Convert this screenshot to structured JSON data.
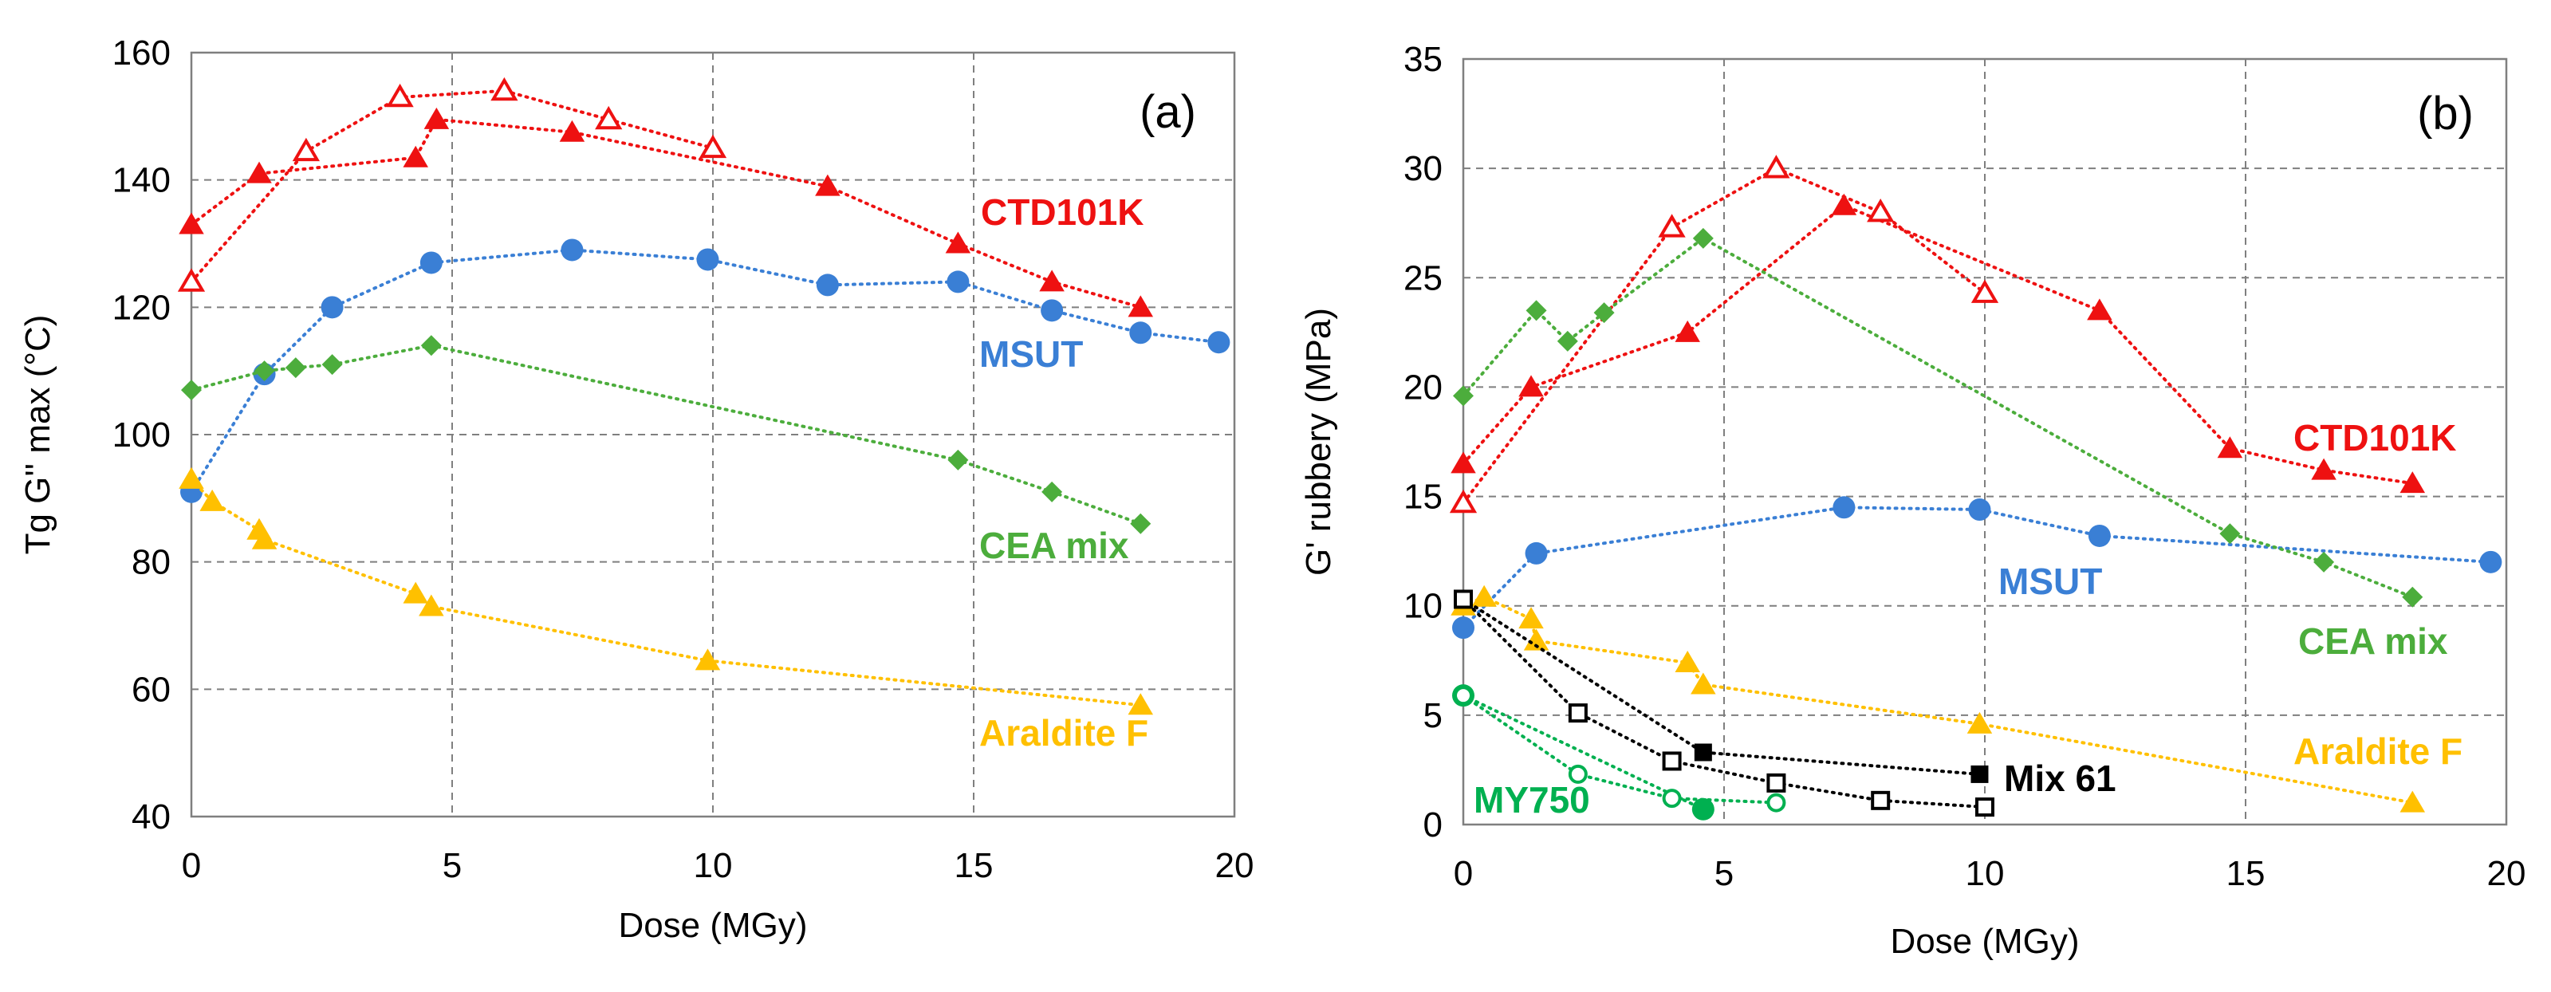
{
  "chart_data": [
    {
      "panel": "(a)",
      "type": "scatter",
      "xlabel": "Dose (MGy)",
      "ylabel": "Tg G'' max (°C)",
      "xlim": [
        0,
        20
      ],
      "ylim": [
        40,
        160
      ],
      "xticks": [
        0,
        5,
        10,
        15,
        20
      ],
      "yticks": [
        40,
        60,
        80,
        100,
        120,
        140,
        160
      ],
      "grid": true,
      "series": [
        {
          "name": "CTD101K",
          "color": "#ee1111",
          "marker": "triangle",
          "filled": true,
          "x": [
            0,
            1.3,
            4.3,
            4.7,
            7.3,
            12.2,
            14.7,
            16.5,
            18.2
          ],
          "y": [
            133,
            141,
            143.5,
            149.5,
            147.5,
            139,
            130,
            124,
            120
          ]
        },
        {
          "name": "CTD101K",
          "color": "#ee1111",
          "marker": "triangle",
          "filled": false,
          "x": [
            0,
            2.2,
            4.0,
            6.0,
            8.0,
            10.0
          ],
          "y": [
            124,
            144.5,
            153,
            154,
            149.5,
            145
          ]
        },
        {
          "name": "MSUT",
          "color": "#3a7fd5",
          "marker": "circle",
          "filled": true,
          "x": [
            0,
            1.4,
            2.7,
            4.6,
            7.3,
            9.9,
            12.2,
            14.7,
            16.5,
            18.2,
            19.7
          ],
          "y": [
            91,
            109.5,
            120,
            127,
            129,
            127.5,
            123.5,
            124,
            119.5,
            116,
            114.5
          ]
        },
        {
          "name": "CEA mix",
          "color": "#4cad3c",
          "marker": "diamond",
          "filled": true,
          "x": [
            0,
            1.4,
            2.0,
            2.7,
            4.6,
            14.7,
            16.5,
            18.2
          ],
          "y": [
            107,
            110,
            110.5,
            111,
            114,
            96,
            91,
            86
          ]
        },
        {
          "name": "Araldite F",
          "color": "#ffc000",
          "marker": "triangle",
          "filled": true,
          "x": [
            0,
            0.4,
            1.3,
            1.4,
            4.3,
            4.6,
            9.9,
            18.2
          ],
          "y": [
            93,
            89.5,
            85,
            83.5,
            75,
            73,
            64.5,
            57.5
          ]
        }
      ],
      "annotations": [
        {
          "text": "CTD101K",
          "color": "#ee1111"
        },
        {
          "text": "MSUT",
          "color": "#3a7fd5"
        },
        {
          "text": "CEA mix",
          "color": "#4cad3c"
        },
        {
          "text": "Araldite F",
          "color": "#ffc000"
        }
      ]
    },
    {
      "panel": "(b)",
      "type": "scatter",
      "xlabel": "Dose (MGy)",
      "ylabel": "G' rubbery (MPa)",
      "xlim": [
        0,
        20
      ],
      "ylim": [
        0,
        35
      ],
      "xticks": [
        0,
        5,
        10,
        15,
        20
      ],
      "yticks": [
        0,
        5,
        10,
        15,
        20,
        25,
        30,
        35
      ],
      "grid": true,
      "series": [
        {
          "name": "CTD101K",
          "color": "#ee1111",
          "marker": "triangle",
          "filled": true,
          "x": [
            0,
            1.3,
            4.3,
            7.3,
            12.2,
            14.7,
            16.5,
            18.2
          ],
          "y": [
            16.5,
            20,
            22.5,
            28.3,
            23.5,
            17.2,
            16.2,
            15.6
          ]
        },
        {
          "name": "CTD101K",
          "color": "#ee1111",
          "marker": "triangle",
          "filled": false,
          "x": [
            0,
            4.0,
            6.0,
            8.0,
            10.0
          ],
          "y": [
            14.7,
            27.3,
            30,
            28,
            24.3
          ]
        },
        {
          "name": "MSUT",
          "color": "#3a7fd5",
          "marker": "circle",
          "filled": true,
          "x": [
            0,
            1.4,
            7.3,
            9.9,
            12.2,
            19.7
          ],
          "y": [
            9,
            12.4,
            14.5,
            14.4,
            13.2,
            12
          ]
        },
        {
          "name": "CEA mix",
          "color": "#4cad3c",
          "marker": "diamond",
          "filled": true,
          "x": [
            0,
            1.4,
            2.0,
            2.7,
            4.6,
            14.7,
            16.5,
            18.2
          ],
          "y": [
            19.6,
            23.5,
            22.1,
            23.4,
            26.8,
            13.3,
            12,
            10.4
          ]
        },
        {
          "name": "Araldite F",
          "color": "#ffc000",
          "marker": "triangle",
          "filled": true,
          "x": [
            0,
            0.4,
            1.3,
            1.4,
            4.3,
            4.6,
            9.9,
            18.2
          ],
          "y": [
            10,
            10.4,
            9.4,
            8.4,
            7.4,
            6.4,
            4.6,
            1
          ]
        },
        {
          "name": "Mix 61",
          "color": "#000000",
          "marker": "square",
          "filled": true,
          "x": [
            0,
            4.6,
            9.9
          ],
          "y": [
            10.3,
            3.3,
            2.3
          ]
        },
        {
          "name": "Mix 61",
          "color": "#000000",
          "marker": "square",
          "filled": false,
          "x": [
            0,
            2.2,
            4.0,
            6.0,
            8.0,
            10.0
          ],
          "y": [
            10.3,
            5.1,
            2.9,
            1.9,
            1.1,
            0.8
          ]
        },
        {
          "name": "MY750",
          "color": "#00b050",
          "marker": "circle",
          "filled": true,
          "x": [
            0,
            4.6
          ],
          "y": [
            5.9,
            0.7
          ]
        },
        {
          "name": "MY750",
          "color": "#00b050",
          "marker": "circle",
          "filled": false,
          "x": [
            0,
            2.2,
            4.0,
            6.0
          ],
          "y": [
            5.9,
            2.3,
            1.2,
            1.0
          ]
        }
      ],
      "annotations": [
        {
          "text": "CTD101K",
          "color": "#ee1111"
        },
        {
          "text": "MSUT",
          "color": "#3a7fd5"
        },
        {
          "text": "CEA mix",
          "color": "#4cad3c"
        },
        {
          "text": "Araldite F",
          "color": "#ffc000"
        },
        {
          "text": "Mix 61",
          "color": "#000000"
        },
        {
          "text": "MY750",
          "color": "#00b050"
        }
      ]
    }
  ]
}
